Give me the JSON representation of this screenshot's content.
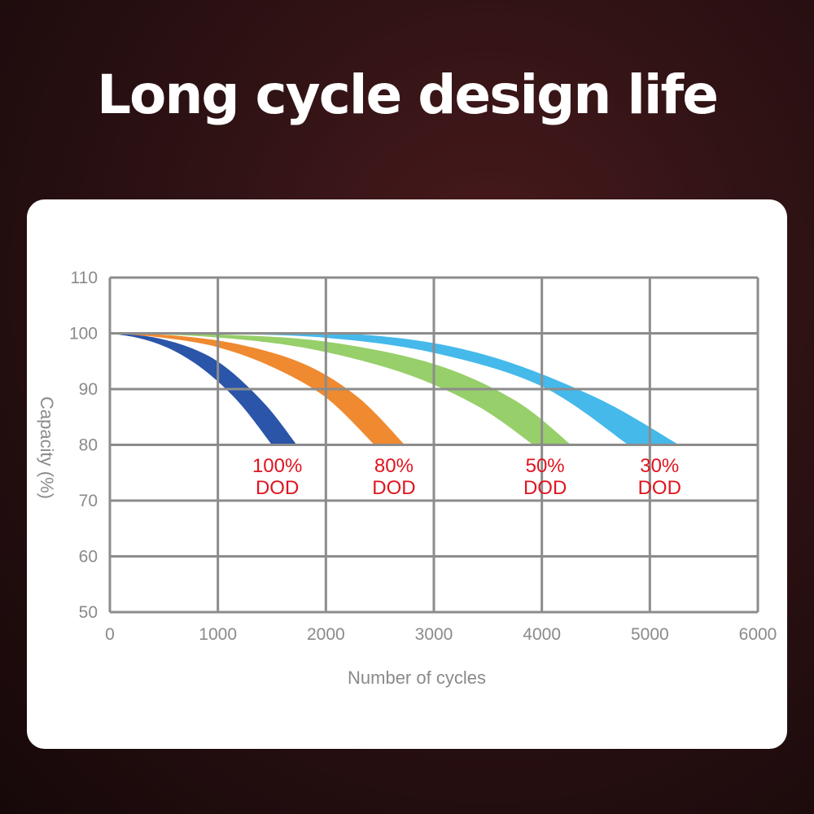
{
  "title": "Long cycle design life",
  "chart_data": {
    "type": "area",
    "title": "",
    "xlabel": "Number of cycles",
    "ylabel": "Capacity (%)",
    "xlim": [
      0,
      6000
    ],
    "ylim": [
      50,
      110
    ],
    "x_ticks": [
      "0",
      "1000",
      "2000",
      "3000",
      "4000",
      "5000",
      "6000"
    ],
    "y_ticks": [
      "50",
      "60",
      "70",
      "80",
      "90",
      "100",
      "110"
    ],
    "grid": true,
    "series": [
      {
        "name": "100% DOD",
        "label_top": "100%",
        "label_bottom": "DOD",
        "color": "#2a55a8",
        "upper": [
          [
            0,
            100
          ],
          [
            300,
            99
          ],
          [
            600,
            96.8
          ],
          [
            900,
            93
          ],
          [
            1200,
            87.5
          ],
          [
            1500,
            80
          ]
        ],
        "lower": [
          [
            0,
            100
          ],
          [
            400,
            99.3
          ],
          [
            800,
            97
          ],
          [
            1100,
            93.5
          ],
          [
            1450,
            87
          ],
          [
            1730,
            80
          ]
        ],
        "label_x": 1550
      },
      {
        "name": "80% DOD",
        "label_top": "80%",
        "label_bottom": "DOD",
        "color": "#ef8a30",
        "upper": [
          [
            0,
            100
          ],
          [
            500,
            99.2
          ],
          [
            1000,
            97.5
          ],
          [
            1500,
            94
          ],
          [
            2000,
            88.5
          ],
          [
            2450,
            80
          ]
        ],
        "lower": [
          [
            0,
            100
          ],
          [
            600,
            99.6
          ],
          [
            1200,
            98
          ],
          [
            1800,
            94.5
          ],
          [
            2300,
            88.5
          ],
          [
            2730,
            80
          ]
        ],
        "label_x": 2630
      },
      {
        "name": "50% DOD",
        "label_top": "50%",
        "label_bottom": "DOD",
        "color": "#97cf6a",
        "upper": [
          [
            0,
            100
          ],
          [
            900,
            99.4
          ],
          [
            1800,
            97.4
          ],
          [
            2700,
            93
          ],
          [
            3400,
            87
          ],
          [
            3920,
            80
          ]
        ],
        "lower": [
          [
            0,
            100
          ],
          [
            1000,
            99.8
          ],
          [
            2000,
            98.5
          ],
          [
            3000,
            94.5
          ],
          [
            3750,
            88
          ],
          [
            4270,
            80
          ]
        ],
        "label_x": 4030
      },
      {
        "name": "30% DOD",
        "label_top": "30%",
        "label_bottom": "DOD",
        "color": "#45b9ea",
        "upper": [
          [
            0,
            100
          ],
          [
            1000,
            99.9
          ],
          [
            2000,
            99.2
          ],
          [
            3000,
            96.5
          ],
          [
            4000,
            90.5
          ],
          [
            4800,
            80
          ]
        ],
        "lower": [
          [
            0,
            100
          ],
          [
            1200,
            100.2
          ],
          [
            2500,
            99.5
          ],
          [
            3500,
            96
          ],
          [
            4500,
            88.5
          ],
          [
            5270,
            80
          ]
        ],
        "label_x": 5090
      }
    ]
  }
}
